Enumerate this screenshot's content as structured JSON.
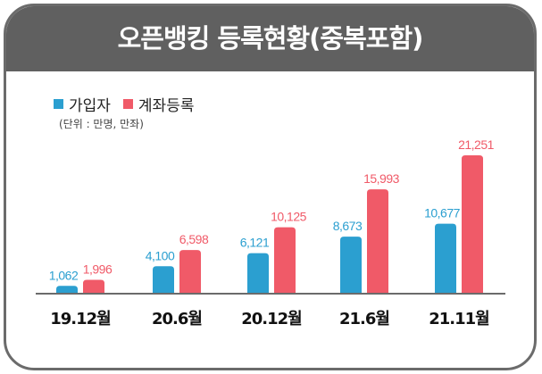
{
  "title": "오픈뱅킹 등록현황(중복포함)",
  "unit_note": "(단위 : 만명, 만좌)",
  "colors": {
    "subscribers": "#2b9fd0",
    "accounts": "#f05a68",
    "header": "#606060",
    "frame": "#6b6b6b"
  },
  "chart_data": {
    "type": "bar",
    "title": "오픈뱅킹 등록현황(중복포함)",
    "categories": [
      "19.12월",
      "20.6월",
      "20.12월",
      "21.6월",
      "21.11월"
    ],
    "series": [
      {
        "name": "가입자",
        "values": [
          1062,
          4100,
          6121,
          8673,
          10677
        ],
        "labels": [
          "1,062",
          "4,100",
          "6,121",
          "8,673",
          "10,677"
        ]
      },
      {
        "name": "계좌등록",
        "values": [
          1996,
          6598,
          10125,
          15993,
          21251
        ],
        "labels": [
          "1,996",
          "6,598",
          "10,125",
          "15,993",
          "21,251"
        ]
      }
    ],
    "xlabel": "",
    "ylabel": "",
    "ylim": [
      0,
      22000
    ],
    "grid": false,
    "legend": "top-left",
    "unit": "(단위 : 만명, 만좌)"
  }
}
